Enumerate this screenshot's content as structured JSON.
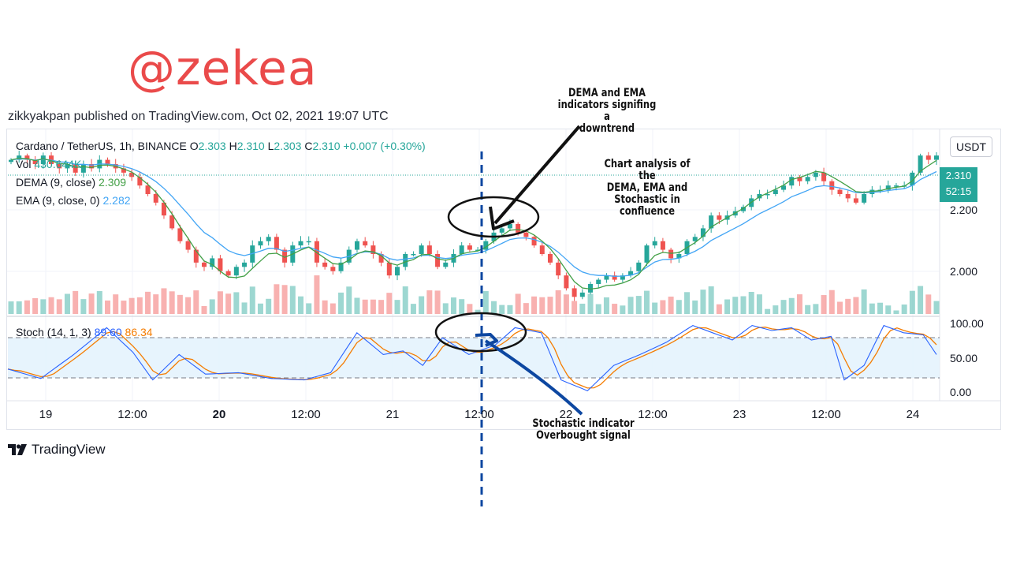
{
  "watermark": "@zekea",
  "published": "zikkyakpan published on TradingView.com, Oct 02, 2021 19:07 UTC",
  "legend": {
    "symbol": "Cardano / TetherUS, 1h, BINANCE",
    "o_label": "O",
    "o": "2.303",
    "h_label": "H",
    "h": "2.310",
    "l_label": "L",
    "l": "2.303",
    "c_label": "C",
    "c": "2.310",
    "change": "+0.007 (+0.30%)",
    "vol_label": "Vol",
    "vol": "430.644K",
    "dema_label": "DEMA (9, close)",
    "dema": "2.309",
    "ema_label": "EMA (9, close, 0)",
    "ema": "2.282",
    "stoch_label": "Stoch (14, 1, 3)",
    "stoch_k": "89.60",
    "stoch_d": "86.34"
  },
  "currency": "USDT",
  "price_tag": {
    "price": "2.310",
    "countdown": "52:15"
  },
  "price_axis": [
    "2.200",
    "2.000"
  ],
  "stoch_axis": [
    "100.00",
    "50.00",
    "0.00"
  ],
  "time_axis": [
    {
      "label": "19",
      "bold": false
    },
    {
      "label": "12:00",
      "bold": false
    },
    {
      "label": "20",
      "bold": true
    },
    {
      "label": "12:00",
      "bold": false
    },
    {
      "label": "21",
      "bold": false
    },
    {
      "label": "12:00",
      "bold": false
    },
    {
      "label": "22",
      "bold": false
    },
    {
      "label": "12:00",
      "bold": false
    },
    {
      "label": "23",
      "bold": false
    },
    {
      "label": "12:00",
      "bold": false
    },
    {
      "label": "24",
      "bold": false
    }
  ],
  "branding": "TradingView",
  "annotations": {
    "dema_ema": [
      "DEMA and EMA",
      "indicators signifing a",
      "downtrend"
    ],
    "confluence": [
      "Chart analysis of the",
      "DEMA, EMA and",
      "Stochastic in",
      "confluence"
    ],
    "stoch_signal": [
      "Stochastic indicator",
      "Overbought signal"
    ]
  },
  "colors": {
    "up": "#26a69a",
    "down": "#ef5350",
    "dema": "#43a047",
    "ema": "#42a5f5",
    "stoch_k": "#2962ff",
    "stoch_d": "#f57c00",
    "annotation_blue": "#0d47a1",
    "watermark": "#ea4a4a"
  },
  "chart_data": {
    "type": "candlestick",
    "symbol": "Cardano / TetherUS, 1h, BINANCE",
    "candles_close": [
      2.3,
      2.31,
      2.3,
      2.29,
      2.31,
      2.29,
      2.28,
      2.29,
      2.27,
      2.29,
      2.28,
      2.3,
      2.29,
      2.28,
      2.27,
      2.26,
      2.24,
      2.22,
      2.2,
      2.17,
      2.14,
      2.11,
      2.09,
      2.06,
      2.05,
      2.07,
      2.04,
      2.03,
      2.05,
      2.06,
      2.1,
      2.11,
      2.12,
      2.09,
      2.06,
      2.1,
      2.11,
      2.11,
      2.06,
      2.05,
      2.04,
      2.06,
      2.09,
      2.11,
      2.1,
      2.08,
      2.06,
      2.03,
      2.05,
      2.08,
      2.08,
      2.1,
      2.08,
      2.05,
      2.06,
      2.08,
      2.1,
      2.09,
      2.09,
      2.11,
      2.13,
      2.14,
      2.15,
      2.13,
      2.12,
      2.1,
      2.08,
      2.06,
      2.03,
      2.0,
      1.98,
      1.99,
      2.01,
      2.02,
      2.03,
      2.02,
      2.03,
      2.04,
      2.06,
      2.1,
      2.11,
      2.09,
      2.07,
      2.08,
      2.11,
      2.12,
      2.14,
      2.17,
      2.16,
      2.17,
      2.18,
      2.19,
      2.21,
      2.22,
      2.22,
      2.23,
      2.24,
      2.26,
      2.25,
      2.26,
      2.27,
      2.25,
      2.23,
      2.22,
      2.21,
      2.2,
      2.22,
      2.23,
      2.23,
      2.24,
      2.24,
      2.24,
      2.27,
      2.31,
      2.3,
      2.31
    ],
    "price_range": [
      1.94,
      2.36
    ],
    "stoch_k_anchor": [
      [
        0,
        35
      ],
      [
        5,
        22
      ],
      [
        10,
        55
      ],
      [
        15,
        92
      ],
      [
        19,
        58
      ],
      [
        22,
        20
      ],
      [
        26,
        55
      ],
      [
        30,
        28
      ],
      [
        35,
        30
      ],
      [
        40,
        22
      ],
      [
        45,
        20
      ],
      [
        49,
        30
      ],
      [
        53,
        85
      ],
      [
        57,
        55
      ],
      [
        60,
        60
      ],
      [
        63,
        40
      ],
      [
        66,
        78
      ],
      [
        70,
        55
      ],
      [
        74,
        68
      ],
      [
        77,
        92
      ],
      [
        81,
        85
      ],
      [
        84,
        20
      ],
      [
        88,
        5
      ],
      [
        92,
        40
      ],
      [
        96,
        55
      ],
      [
        100,
        72
      ],
      [
        104,
        95
      ],
      [
        107,
        85
      ],
      [
        110,
        75
      ],
      [
        113,
        95
      ],
      [
        116,
        88
      ],
      [
        119,
        92
      ],
      [
        122,
        75
      ],
      [
        125,
        80
      ],
      [
        127,
        20
      ],
      [
        130,
        40
      ],
      [
        133,
        95
      ],
      [
        136,
        85
      ],
      [
        139,
        82
      ],
      [
        141,
        55
      ]
    ],
    "stoch_bands": [
      20,
      80
    ],
    "stoch_range": [
      0,
      100
    ]
  }
}
